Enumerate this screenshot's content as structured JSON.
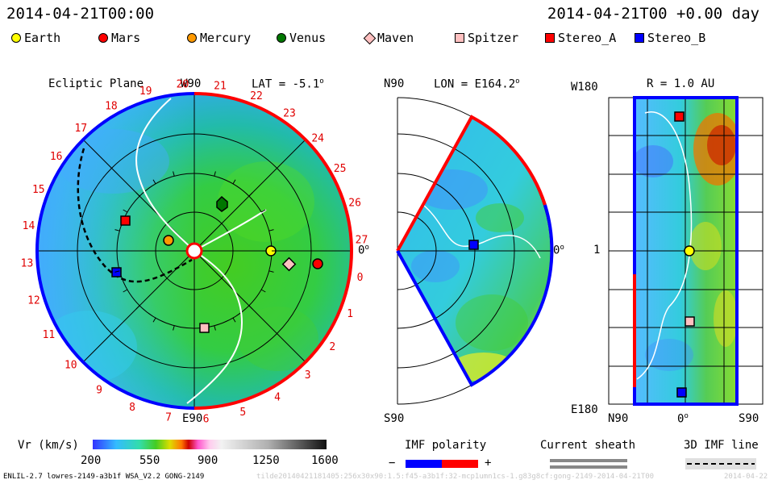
{
  "header": {
    "datetime": "2014-04-21T00:00",
    "offset": "2014-04-21T00 +0.00 day"
  },
  "legend": [
    {
      "label": "Earth",
      "shape": "circle",
      "color": "#ffff00"
    },
    {
      "label": "Mars",
      "shape": "circle",
      "color": "#ff0000"
    },
    {
      "label": "Mercury",
      "shape": "circle",
      "color": "#ff9900"
    },
    {
      "label": "Venus",
      "shape": "circle",
      "color": "#007700"
    },
    {
      "label": "Maven",
      "shape": "diamond",
      "color": "#ffc0c0"
    },
    {
      "label": "Spitzer",
      "shape": "square",
      "color": "#ffc0c0"
    },
    {
      "label": "Stereo_A",
      "shape": "square",
      "color": "#ff0000"
    },
    {
      "label": "Stereo_B",
      "shape": "square",
      "color": "#0000ff"
    }
  ],
  "panels": {
    "ecliptic": {
      "title": "Ecliptic Plane",
      "top_label": "W90",
      "lat_label": "LAT = -5.1",
      "bottom_label": "E90",
      "right_label": "0",
      "sector_numbers": [
        "20",
        "21",
        "22",
        "23",
        "24",
        "25",
        "26",
        "27",
        "0",
        "1",
        "2",
        "3",
        "4",
        "5",
        "6",
        "7",
        "8",
        "9",
        "10",
        "11",
        "12",
        "13",
        "14",
        "15",
        "16",
        "17",
        "18",
        "19"
      ]
    },
    "meridional": {
      "top_label": "N90",
      "lon_label": "LON = E164.2",
      "right_label": "0",
      "bottom_label": "S90"
    },
    "cylindrical": {
      "top_label": "W180",
      "r_label": "R = 1.0 AU",
      "mid_label": "1",
      "bottom_label": "E180",
      "x_labels": [
        "N90",
        "0",
        "S90"
      ]
    }
  },
  "colorbar": {
    "title": "Vr (km/s)",
    "ticks": [
      "200",
      "550",
      "900",
      "1250",
      "1600"
    ]
  },
  "imf": {
    "title": "IMF polarity",
    "minus": "−",
    "plus": "+"
  },
  "current_sheath": {
    "title": "Current sheath"
  },
  "imf_line": {
    "title": "3D IMF line"
  },
  "footer": {
    "model": "ENLIL-2.7 lowres-2149-a3b1f WSA_V2.2 GONG-2149",
    "faint": "tilde20140421181405:256x30x90:1.5:f45-a3b1f:32-mcp1umn1cs-1.g83g8cf:gong-2149-2014-04-21T00",
    "date": "2014-04-22"
  },
  "colors": {
    "background": "#ffffff",
    "imf_positive": "#ff0000",
    "imf_negative": "#0000ff",
    "grid": "#000000"
  }
}
